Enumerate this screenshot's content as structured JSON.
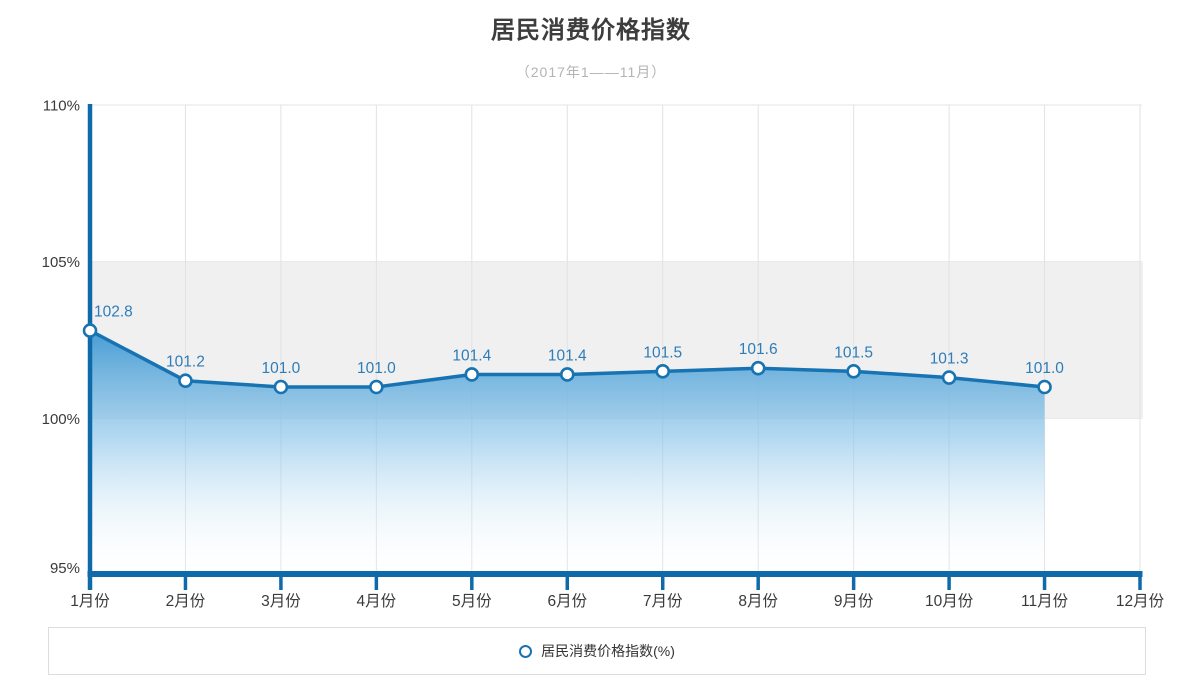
{
  "header": {
    "title": "居民消费价格指数",
    "subtitle": "（2017年1——11月）"
  },
  "legend": {
    "label": "居民消费价格指数(%)"
  },
  "chart_data": {
    "type": "area",
    "title": "居民消费价格指数",
    "subtitle": "（2017年1——11月）",
    "categories": [
      "1月份",
      "2月份",
      "3月份",
      "4月份",
      "5月份",
      "6月份",
      "7月份",
      "8月份",
      "9月份",
      "10月份",
      "11月份",
      "12月份"
    ],
    "series": [
      {
        "name": "居民消费价格指数(%)",
        "values": [
          102.8,
          101.2,
          101.0,
          101.0,
          101.4,
          101.4,
          101.5,
          101.6,
          101.5,
          101.3,
          101.0
        ]
      }
    ],
    "data_labels": [
      "102.8",
      "101.2",
      "101.0",
      "101.0",
      "101.4",
      "101.4",
      "101.5",
      "101.6",
      "101.5",
      "101.3",
      "101.0"
    ],
    "y_ticks": [
      {
        "value": 95,
        "label": "95%"
      },
      {
        "value": 100,
        "label": "100%"
      },
      {
        "value": 105,
        "label": "105%"
      },
      {
        "value": 110,
        "label": "110%"
      }
    ],
    "ylim": [
      95,
      110
    ],
    "band": [
      100,
      105
    ],
    "grid": true,
    "legend_position": "bottom"
  },
  "colors": {
    "line": "#1773b2",
    "axis": "#0f6aa9",
    "marker_fill": "#ffffff",
    "data_label": "#2e7db9",
    "band": "#f0f0f0",
    "gridline": "#e2e2e2",
    "area_top": "#3e98d3",
    "area_mid": "#8ec6ea",
    "area_bottom": "#ffffff",
    "title": "#3d3d3d",
    "subtitle": "#b3b3b3",
    "tick_label": "#3a3a3a",
    "legend_border": "#dddddd",
    "legend_text": "#333333"
  }
}
